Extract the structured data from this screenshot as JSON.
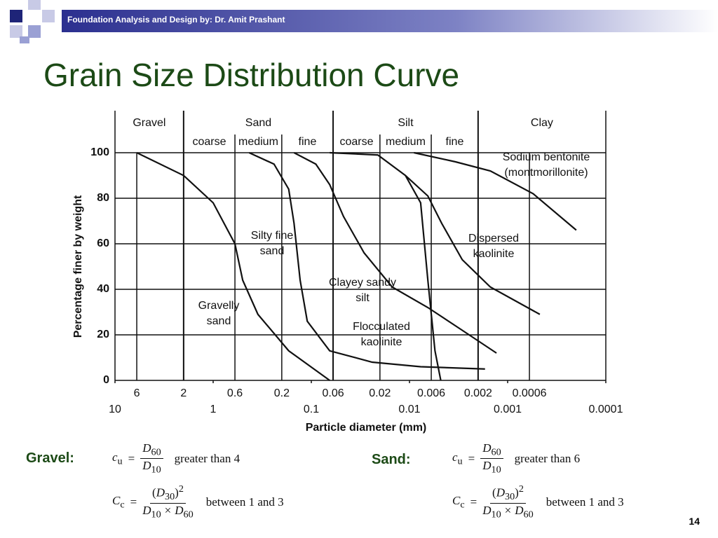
{
  "header": {
    "text": "Foundation Analysis and Design by: Dr. Amit Prashant"
  },
  "title": "Grain Size Distribution Curve",
  "chart_data": {
    "type": "line",
    "log_x": true,
    "x_reversed": true,
    "ylabel": "Percentage finer by weight",
    "xlabel": "Particle diameter (mm)",
    "classes": [
      {
        "name": "Gravel"
      },
      {
        "name": "Sand",
        "sub": [
          "coarse",
          "medium",
          "fine"
        ]
      },
      {
        "name": "Silt",
        "sub": [
          "coarse",
          "medium",
          "fine"
        ]
      },
      {
        "name": "Clay"
      }
    ],
    "class_boundaries": [
      2,
      0.06,
      0.002
    ],
    "sub_boundaries": [
      0.6,
      0.2,
      0.02,
      0.006
    ],
    "xlim": [
      10,
      0.0001
    ],
    "xticks": [
      10,
      1,
      0.1,
      0.01,
      0.001,
      0.0001
    ],
    "xticks_secondary": [
      6,
      2,
      0.6,
      0.2,
      0.06,
      0.02,
      0.006,
      0.002,
      0.0006
    ],
    "ylim": [
      0,
      100
    ],
    "yticks": [
      0,
      20,
      40,
      60,
      80,
      100
    ],
    "grid": true,
    "color": "#111111",
    "series": [
      {
        "name": "Gravelly sand",
        "x": [
          6,
          2,
          1,
          0.6,
          0.5,
          0.35,
          0.17,
          0.065
        ],
        "values": [
          100,
          90,
          78,
          60,
          44,
          29,
          13,
          0
        ]
      },
      {
        "name": "Silty fine sand",
        "x": [
          0.43,
          0.24,
          0.17,
          0.15,
          0.13,
          0.11,
          0.065,
          0.024,
          0.0077,
          0.0017
        ],
        "values": [
          100,
          95,
          84,
          69,
          44,
          26,
          13,
          8,
          6,
          5
        ]
      },
      {
        "name": "Clayey sandy silt",
        "x": [
          0.15,
          0.09,
          0.065,
          0.047,
          0.029,
          0.015,
          0.0065,
          0.0029,
          0.0013
        ],
        "values": [
          100,
          95,
          86,
          72,
          56,
          41,
          32,
          22,
          12
        ]
      },
      {
        "name": "Flocculated kaolinite",
        "x": [
          0.065,
          0.021,
          0.011,
          0.0077,
          0.0065,
          0.0055,
          0.0048
        ],
        "values": [
          100,
          99,
          90,
          78,
          44,
          13,
          0
        ]
      },
      {
        "name": "Dispersed kaolinite",
        "x": [
          0.011,
          0.0065,
          0.0047,
          0.0029,
          0.0015,
          0.00047
        ],
        "values": [
          90,
          81,
          69,
          53,
          41,
          29
        ]
      },
      {
        "name": "Sodium bentonite (montmorillonite)",
        "x": [
          0.009,
          0.0034,
          0.0015,
          0.00055,
          0.0002
        ],
        "values": [
          100,
          96,
          92,
          82,
          66
        ]
      }
    ]
  },
  "notation": {
    "c": "c",
    "u": "u",
    "C": "C",
    "c_sub": "c",
    "D": "D",
    "d10": "10",
    "d30": "30",
    "d60": "60",
    "square": "2",
    "eq": "=",
    "times": "×",
    "lparen": "(",
    "rparen": ")"
  },
  "criteria": [
    {
      "label": "Gravel:",
      "cu_condition": "greater than 4",
      "cc_condition": "between 1 and 3"
    },
    {
      "label": "Sand:",
      "cu_condition": "greater than 6",
      "cc_condition": "between 1 and 3"
    }
  ],
  "page_number": "14"
}
